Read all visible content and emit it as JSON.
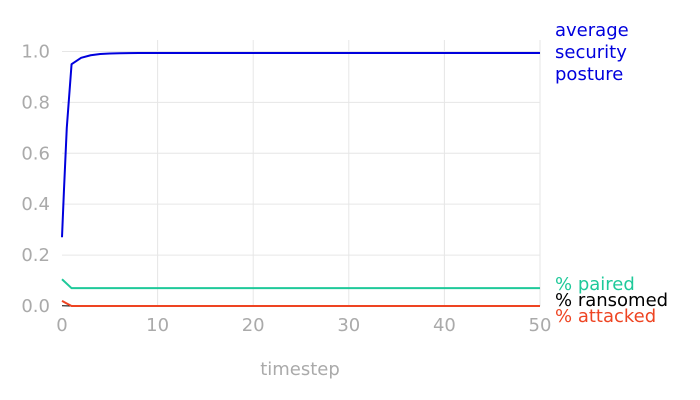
{
  "chart_data": {
    "type": "line",
    "xlabel": "timestep",
    "ylabel": "",
    "xlim": [
      0,
      50
    ],
    "ylim": [
      0,
      1.0
    ],
    "x_ticks": [
      0,
      10,
      20,
      30,
      40,
      50
    ],
    "y_ticks": [
      0.0,
      0.2,
      0.4,
      0.6,
      0.8,
      1.0
    ],
    "grid": true,
    "legend": "right, labels at line ends",
    "series": [
      {
        "name": "average security posture",
        "label_lines": [
          "average",
          "security",
          "posture"
        ],
        "color": "#0000dd",
        "x": [
          0,
          0.2,
          0.5,
          1,
          2,
          3,
          4,
          5,
          6,
          8,
          10,
          20,
          30,
          40,
          50
        ],
        "y": [
          0.27,
          0.45,
          0.7,
          0.95,
          0.975,
          0.985,
          0.99,
          0.992,
          0.993,
          0.994,
          0.994,
          0.994,
          0.994,
          0.994,
          0.994
        ]
      },
      {
        "name": "% paired",
        "label_lines": [
          "% paired"
        ],
        "color": "#1fc99a",
        "x": [
          0,
          1,
          2,
          10,
          20,
          30,
          40,
          50
        ],
        "y": [
          0.105,
          0.07,
          0.07,
          0.07,
          0.07,
          0.07,
          0.07,
          0.07
        ]
      },
      {
        "name": "% ransomed",
        "label_lines": [
          "% ransomed"
        ],
        "color": "#000000",
        "x": [
          0,
          1,
          10,
          20,
          30,
          40,
          50
        ],
        "y": [
          0.001,
          0.0,
          0.0,
          0.0,
          0.0,
          0.0,
          0.0
        ]
      },
      {
        "name": "% attacked",
        "label_lines": [
          "% attacked"
        ],
        "color": "#ee4422",
        "x": [
          0,
          0.5,
          1,
          10,
          50
        ],
        "y": [
          0.02,
          0.01,
          0.0,
          0.0,
          0.0
        ]
      }
    ]
  }
}
